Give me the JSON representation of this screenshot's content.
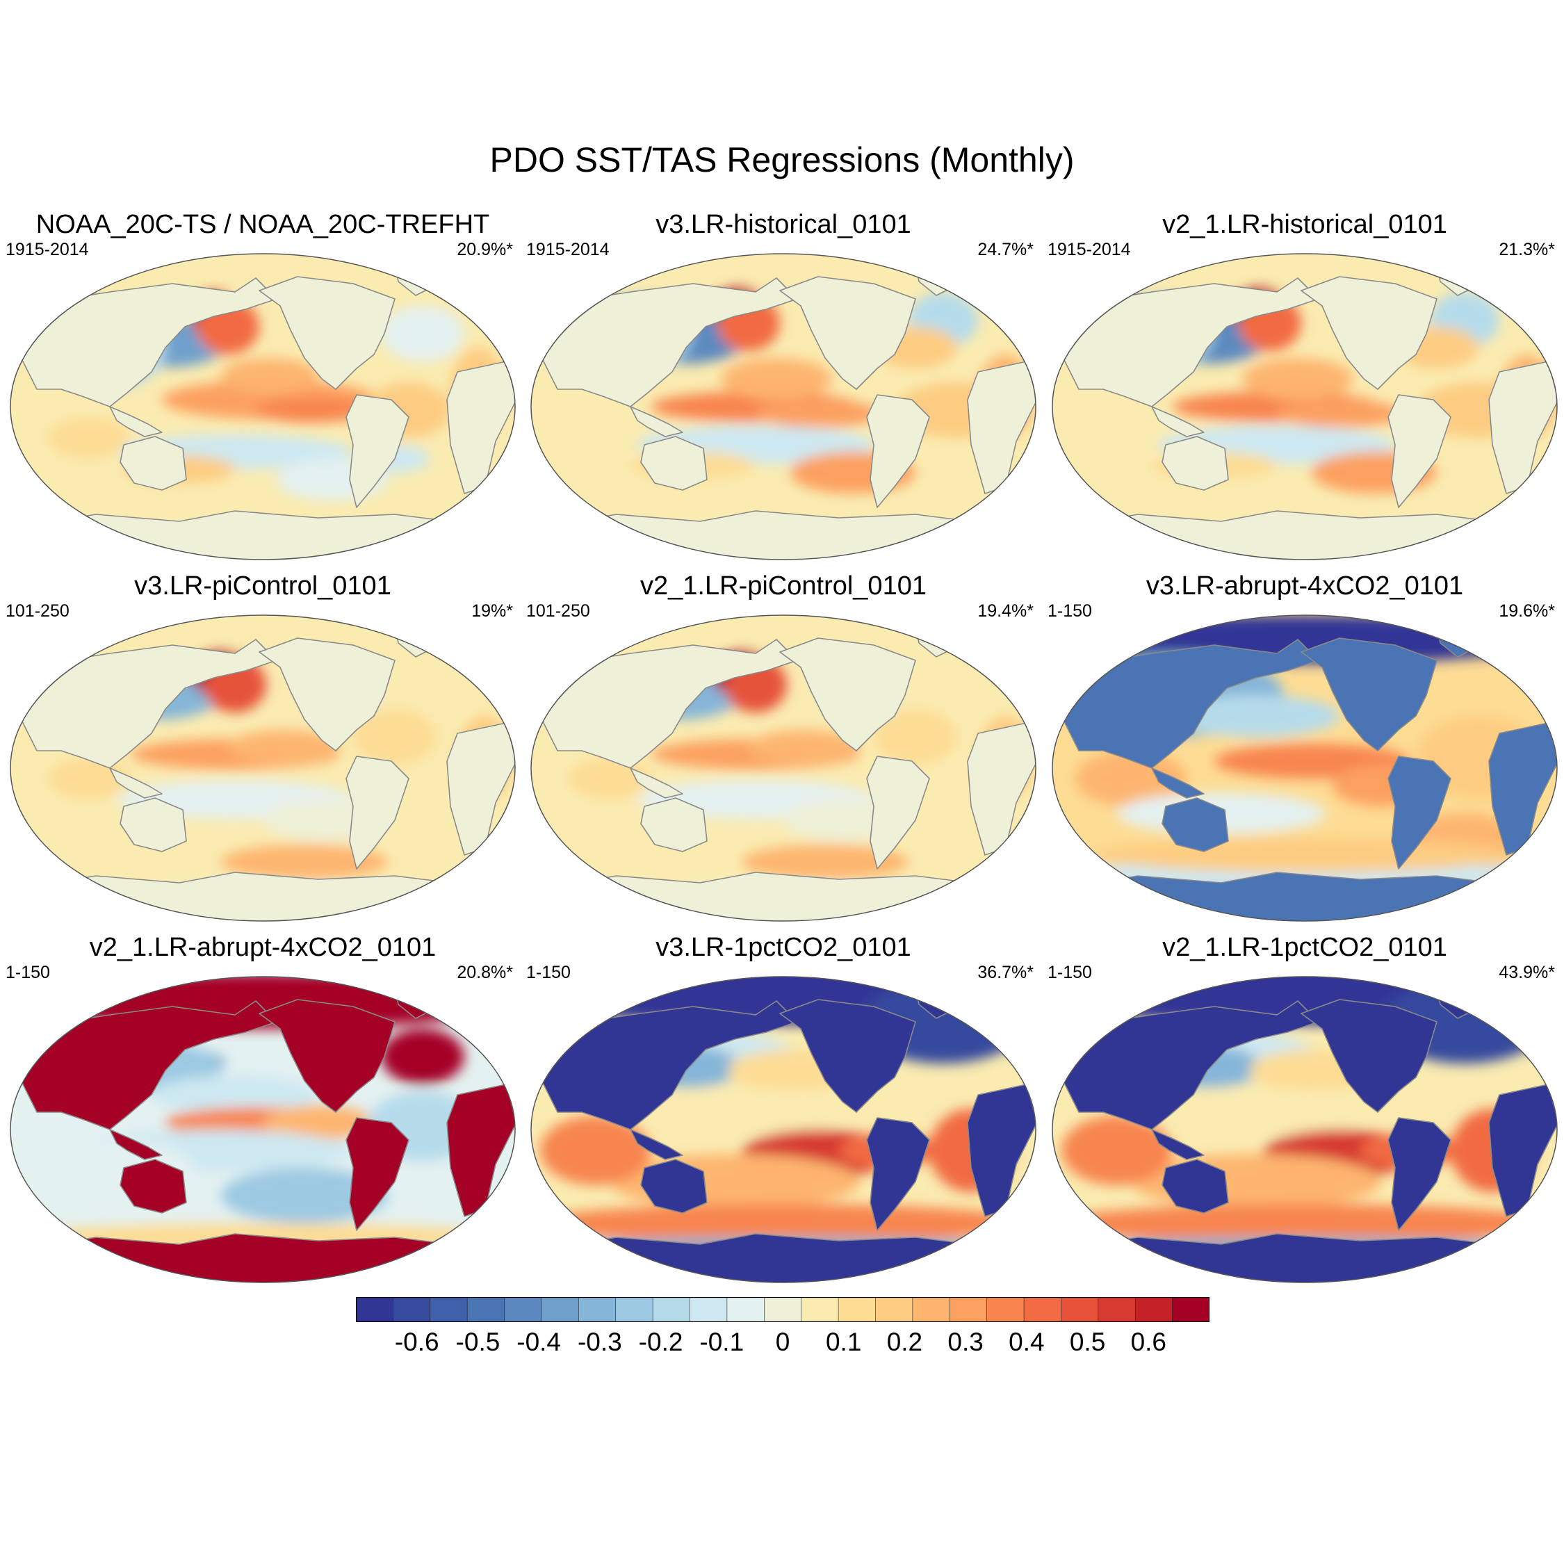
{
  "title": "PDO SST/TAS Regressions (Monthly)",
  "chart_data": {
    "type": "map",
    "title": "PDO SST/TAS Regressions (Monthly)",
    "projection": "Robinson-like global ellipse, centered on the Pacific",
    "panels": [
      {
        "title": "NOAA_20C-TS / NOAA_20C-TREFHT",
        "period": "1915-2014",
        "variance": "20.9%*",
        "pattern": "observed"
      },
      {
        "title": "v3.LR-historical_0101",
        "period": "1915-2014",
        "variance": "24.7%*",
        "pattern": "historical"
      },
      {
        "title": "v2_1.LR-historical_0101",
        "period": "1915-2014",
        "variance": "21.3%*",
        "pattern": "historical"
      },
      {
        "title": "v3.LR-piControl_0101",
        "period": "101-250",
        "variance": "19%*",
        "pattern": "control"
      },
      {
        "title": "v2_1.LR-piControl_0101",
        "period": "101-250",
        "variance": "19.4%*",
        "pattern": "control"
      },
      {
        "title": "v3.LR-abrupt-4xCO2_0101",
        "period": "1-150",
        "variance": "19.6%*",
        "pattern": "warm-land-negative"
      },
      {
        "title": "v2_1.LR-abrupt-4xCO2_0101",
        "period": "1-150",
        "variance": "20.8%*",
        "pattern": "warm-land-positive"
      },
      {
        "title": "v3.LR-1pctCO2_0101",
        "period": "1-150",
        "variance": "36.7%*",
        "pattern": "strong-land-negative"
      },
      {
        "title": "v2_1.LR-1pctCO2_0101",
        "period": "1-150",
        "variance": "43.9%*",
        "pattern": "strong-land-negative"
      }
    ],
    "colorbar": {
      "min": -0.7,
      "max": 0.7,
      "labels": [
        "-0.6",
        "-0.5",
        "-0.4",
        "-0.3",
        "-0.2",
        "-0.1",
        "0",
        "0.1",
        "0.2",
        "0.3",
        "0.4",
        "0.5",
        "0.6"
      ],
      "label_values": [
        -0.6,
        -0.5,
        -0.4,
        -0.3,
        -0.2,
        -0.1,
        0,
        0.1,
        0.2,
        0.3,
        0.4,
        0.5,
        0.6
      ],
      "colors": [
        "#313695",
        "#364a9e",
        "#4060aa",
        "#4a74b4",
        "#5b89bf",
        "#6fa0cc",
        "#85b5d8",
        "#9dc9e2",
        "#b5dbeb",
        "#cde8f1",
        "#e4f1f1",
        "#eef0d8",
        "#faebb0",
        "#fddc94",
        "#fdcc82",
        "#fdb570",
        "#fca060",
        "#f88550",
        "#f26b43",
        "#e6523a",
        "#d73a30",
        "#c42228",
        "#a50026"
      ]
    }
  }
}
